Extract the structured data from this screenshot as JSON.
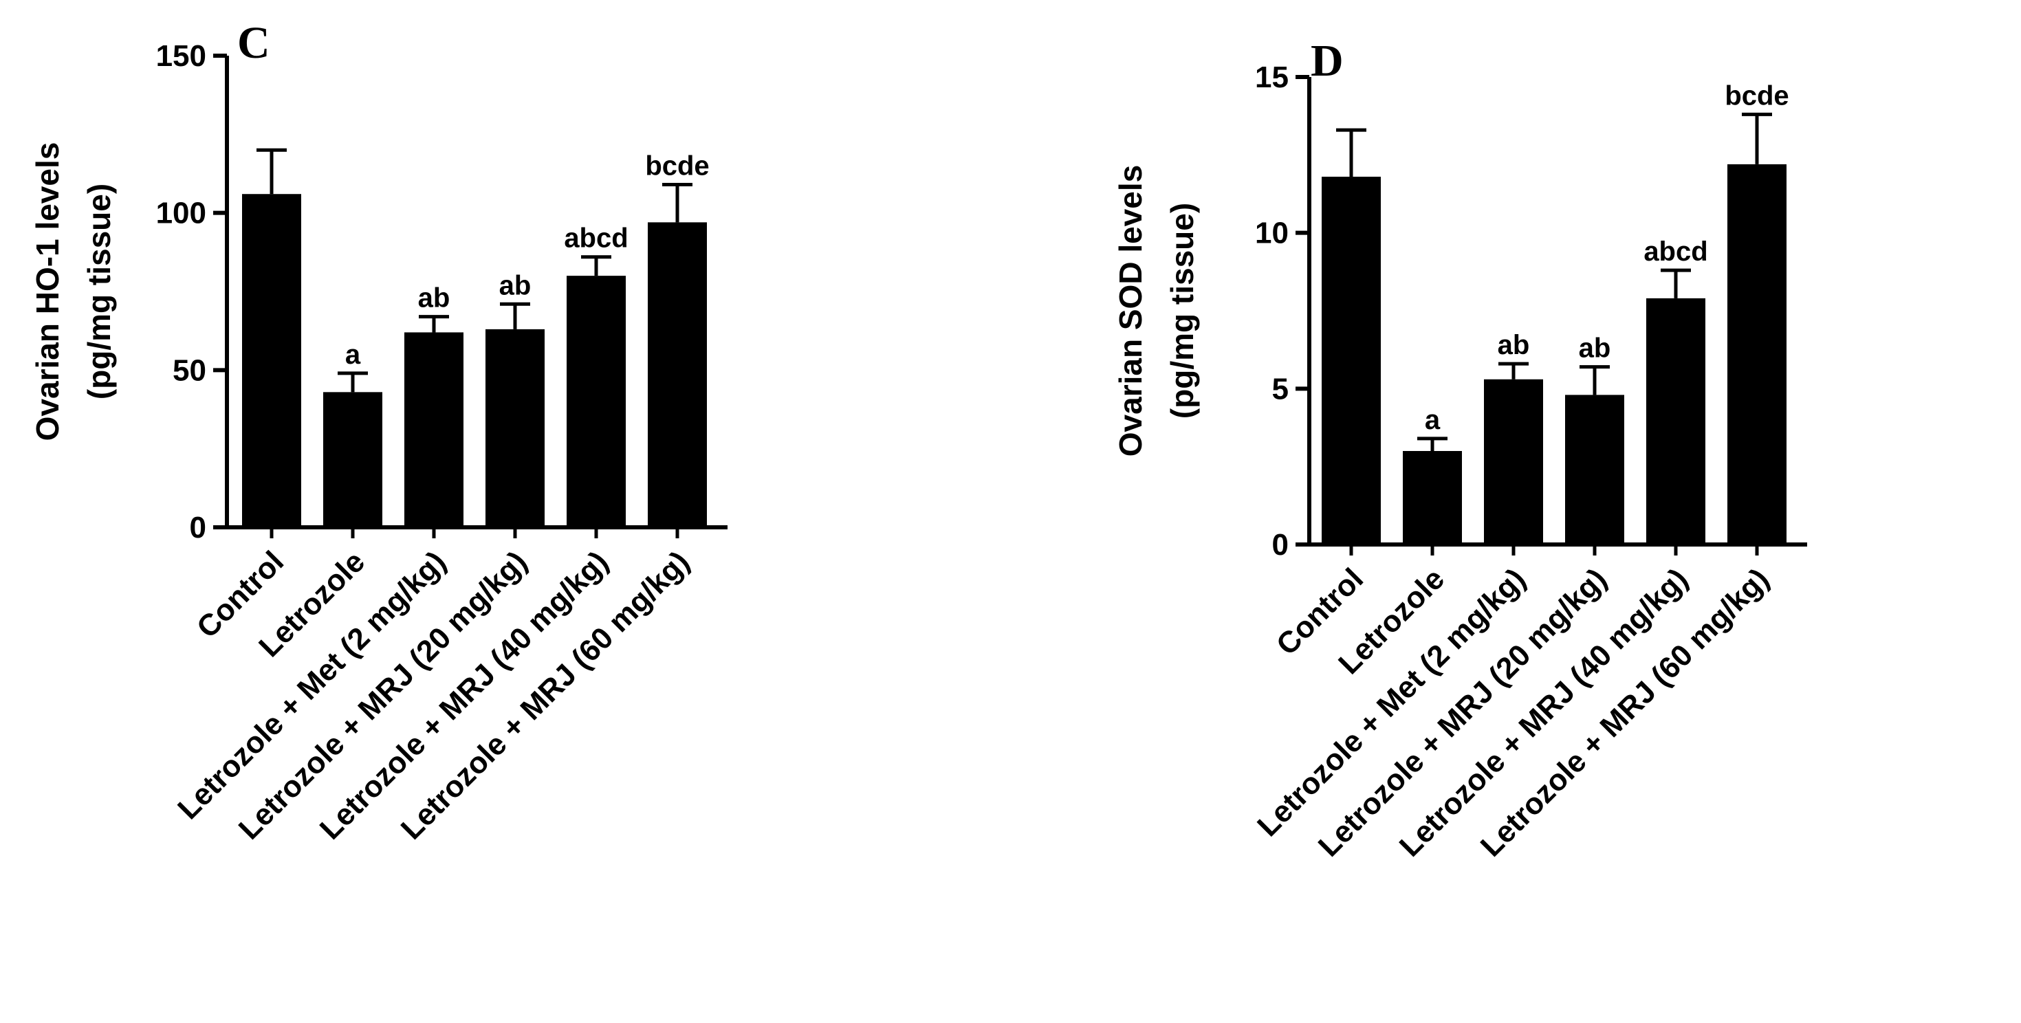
{
  "chart_data": [
    {
      "type": "bar",
      "panel_label": "C",
      "ylabel": [
        "Ovarian HO-1 levels",
        "(pg/mg tissue)"
      ],
      "categories": [
        "Control",
        "Letrozole",
        "Letrozole + Met (2 mg/kg)",
        "Letrozole + MRJ (20 mg/kg)",
        "Letrozole + MRJ (40 mg/kg)",
        "Letrozole + MRJ (60 mg/kg)"
      ],
      "values": [
        106,
        43,
        62,
        63,
        80,
        97
      ],
      "errors": [
        14,
        6,
        5,
        8,
        6,
        12
      ],
      "labels": [
        "",
        "a",
        "ab",
        "ab",
        "abcd",
        "bcde"
      ],
      "ylim": [
        0,
        150
      ],
      "yticks": [
        0,
        50,
        100,
        150
      ],
      "bar_color": "#000000",
      "grid": false
    },
    {
      "type": "bar",
      "panel_label": "D",
      "ylabel": [
        "Ovarian SOD levels",
        "(pg/mg tissue)"
      ],
      "categories": [
        "Control",
        "Letrozole",
        "Letrozole + Met (2 mg/kg)",
        "Letrozole + MRJ (20 mg/kg)",
        "Letrozole + MRJ (40 mg/kg)",
        "Letrozole + MRJ (60 mg/kg)"
      ],
      "values": [
        11.8,
        3.0,
        5.3,
        4.8,
        7.9,
        12.2
      ],
      "errors": [
        1.5,
        0.4,
        0.5,
        0.9,
        0.9,
        1.6
      ],
      "labels": [
        "",
        "a",
        "ab",
        "ab",
        "abcd",
        "bcde"
      ],
      "ylim": [
        0,
        15
      ],
      "yticks": [
        0,
        5,
        10,
        15
      ],
      "bar_color": "#000000",
      "grid": false
    }
  ]
}
